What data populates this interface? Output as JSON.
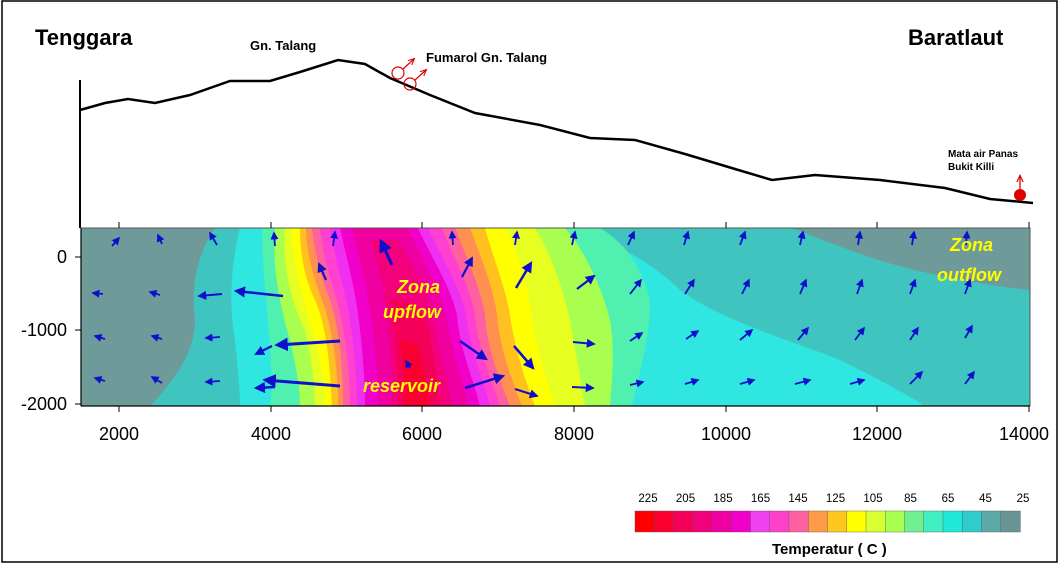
{
  "labels": {
    "left_direction": "Tenggara",
    "right_direction": "Baratlaut",
    "peak": "Gn. Talang",
    "fumarole": "Fumarol Gn. Talang",
    "hot_spring_line1": "Mata air Panas",
    "hot_spring_line2": "Bukit Killi"
  },
  "zones": {
    "upflow_line1": "Zona",
    "upflow_line2": "upflow",
    "outflow_line1": "Zona",
    "outflow_line2": "outflow",
    "reservoir": "reservoir"
  },
  "axes": {
    "x_ticks": [
      "2000",
      "4000",
      "6000",
      "8000",
      "10000",
      "12000",
      "14000"
    ],
    "y_ticks": [
      "0",
      "-1000",
      "-2000"
    ]
  },
  "legend": {
    "title": "Temperatur ( C )",
    "labels": [
      "225",
      "205",
      "185",
      "165",
      "145",
      "125",
      "105",
      "85",
      "65",
      "45",
      "25"
    ],
    "colors": [
      "#ff0000",
      "#fa0030",
      "#f50058",
      "#f3007c",
      "#f000a0",
      "#f000c8",
      "#f040f0",
      "#ff40c8",
      "#ff60a0",
      "#ff9a4a",
      "#ffc820",
      "#ffff00",
      "#d8ff30",
      "#a8ff50",
      "#70f090",
      "#40f0c0",
      "#20e8d8",
      "#30cccc",
      "#5aa8a8",
      "#6a9494"
    ]
  },
  "colors": {
    "background_cold": "#6e9a9a",
    "arrow": "#1010cc",
    "marker": "#e00000"
  }
}
